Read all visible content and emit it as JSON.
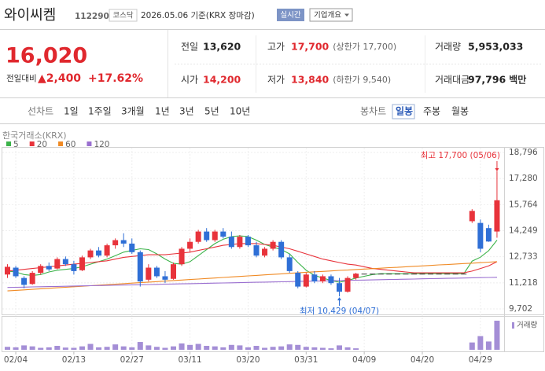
{
  "header": {
    "name": "와이씨켐",
    "code": "112290",
    "market": "코스닥",
    "date": "2026.05.06 기준(KRX 장마감)",
    "realtime": "실시간",
    "company_info": "기업개요"
  },
  "quote": {
    "price": "16,020",
    "change_label": "전일대비",
    "change": "▲2,400",
    "change_pct": "+17.62%",
    "color": "#e0282e"
  },
  "stats": [
    {
      "label": "전일",
      "value": "13,620",
      "color": "#222222"
    },
    {
      "label": "고가",
      "value": "17,700",
      "note": "(상한가 17,700)",
      "color": "#e0282e"
    },
    {
      "label": "거래량",
      "value": "5,953,033",
      "color": "#222222"
    },
    {
      "label": "시가",
      "value": "14,200",
      "color": "#e0282e"
    },
    {
      "label": "저가",
      "value": "13,840",
      "note": "(하한가 9,540)",
      "color": "#e0282e"
    },
    {
      "label": "거래대금",
      "value": "97,796",
      "unit": "백만",
      "color": "#222222"
    }
  ],
  "tabs": {
    "line_label": "선차트",
    "line": [
      "1일",
      "1주일",
      "3개월",
      "1년",
      "3년",
      "5년",
      "10년"
    ],
    "candle_label": "봉차트",
    "candle": [
      "일봉",
      "주봉",
      "월봉"
    ],
    "selected": "일봉"
  },
  "chart_data": {
    "type": "candlestick",
    "source": "한국거래소(KRX)",
    "categories": [
      null,
      "02/04",
      null,
      null,
      null,
      null,
      null,
      null,
      "02/13",
      null,
      null,
      null,
      null,
      null,
      null,
      "02/27",
      null,
      null,
      null,
      null,
      null,
      null,
      "03/11",
      null,
      null,
      null,
      null,
      null,
      null,
      "03/20",
      null,
      null,
      null,
      null,
      null,
      null,
      "03/31",
      null,
      null,
      null,
      null,
      null,
      null,
      "04/09",
      null,
      null,
      null,
      null,
      null,
      null,
      "04/20",
      null,
      null,
      null,
      null,
      null,
      null,
      "04/29",
      null,
      null
    ],
    "open": [
      11700,
      12100,
      11500,
      11150,
      11800,
      12200,
      12050,
      12600,
      12300,
      11950,
      12700,
      13100,
      12800,
      13400,
      13700,
      13500,
      13000,
      11400,
      12100,
      11600,
      11450,
      12300,
      13200,
      13600,
      14200,
      13700,
      14200,
      13900,
      13300,
      13900,
      13400,
      12800,
      13200,
      13600,
      12700,
      11800,
      11000,
      11700,
      11300,
      11600,
      11200,
      10700,
      11500,
      11750,
      11750,
      11750,
      11750,
      11750,
      11750,
      11750,
      11750,
      11750,
      11750,
      11750,
      11750,
      11750,
      14800,
      14700,
      14400,
      14200
    ],
    "high": [
      12300,
      12200,
      11600,
      11900,
      12300,
      12400,
      12700,
      12750,
      12500,
      12800,
      13200,
      13300,
      13500,
      13800,
      14100,
      13800,
      13100,
      12300,
      12200,
      11900,
      12400,
      13300,
      13800,
      14300,
      14400,
      14300,
      14400,
      14200,
      14000,
      14000,
      13600,
      13300,
      13700,
      13700,
      12900,
      11900,
      11800,
      11900,
      11700,
      11700,
      11500,
      11600,
      11800,
      11750,
      11750,
      11750,
      11750,
      11750,
      11750,
      11750,
      11750,
      11750,
      11750,
      11750,
      11750,
      11750,
      15500,
      14900,
      14600,
      17700
    ],
    "low": [
      11500,
      11500,
      10900,
      11100,
      11700,
      11900,
      12000,
      12200,
      11700,
      11900,
      12600,
      12700,
      12700,
      13200,
      13300,
      12900,
      11000,
      11300,
      11500,
      11200,
      11400,
      12200,
      13000,
      13500,
      13600,
      13600,
      13800,
      13200,
      13200,
      13300,
      12700,
      12700,
      13100,
      12600,
      11800,
      10900,
      10950,
      11200,
      11200,
      11100,
      10429,
      10650,
      11400,
      11750,
      11750,
      11750,
      11750,
      11750,
      11750,
      11750,
      11750,
      11750,
      11750,
      11750,
      11750,
      11750,
      14700,
      13000,
      13600,
      13840
    ],
    "close": [
      12150,
      11600,
      11100,
      11800,
      12200,
      12000,
      12600,
      12300,
      11900,
      12700,
      13100,
      12800,
      13400,
      13700,
      13500,
      13000,
      11300,
      12100,
      11600,
      11400,
      12300,
      13200,
      13600,
      14200,
      13700,
      14200,
      13900,
      13300,
      13900,
      13400,
      12800,
      13200,
      13600,
      12700,
      11900,
      11000,
      11700,
      11300,
      11600,
      11200,
      10700,
      11500,
      11750,
      11750,
      11750,
      11750,
      11750,
      11750,
      11750,
      11750,
      11750,
      11750,
      11750,
      11750,
      11750,
      11750,
      15400,
      13200,
      13620,
      16020
    ],
    "volume": [
      600000,
      500000,
      900000,
      700000,
      400000,
      500000,
      800000,
      450000,
      400000,
      700000,
      1200000,
      500000,
      600000,
      1100000,
      700000,
      500000,
      1600000,
      900000,
      600000,
      400000,
      700000,
      1300000,
      1000000,
      1200000,
      800000,
      700000,
      500000,
      1000000,
      900000,
      500000,
      800000,
      400000,
      600000,
      700000,
      1100000,
      1000000,
      600000,
      500000,
      400000,
      300000,
      900000,
      500000,
      300000,
      0,
      0,
      0,
      0,
      0,
      0,
      0,
      0,
      0,
      0,
      0,
      0,
      0,
      1500000,
      2800000,
      1700000,
      5953033
    ],
    "up_color": "#e8333b",
    "down_color": "#2f6fd6",
    "flat_color": "#333333",
    "volume_color": "#a48ed6",
    "volume_label": "거래량",
    "series": [
      {
        "name": "5",
        "color": "#3cb34a",
        "values": [
          11900,
          11850,
          11700,
          11650,
          11700,
          11850,
          11950,
          12000,
          12050,
          12150,
          12300,
          12450,
          12600,
          12800,
          13000,
          13100,
          13200,
          13150,
          12900,
          12600,
          12350,
          12300,
          12450,
          12800,
          13150,
          13500,
          13750,
          13900,
          13950,
          13900,
          13700,
          13450,
          13300,
          13150,
          12900,
          12400,
          11950,
          11650,
          11500,
          11350,
          11250,
          11350,
          11500,
          11600,
          11700,
          11750,
          11750,
          11750,
          11750,
          11750,
          11750,
          11750,
          11750,
          11750,
          11750,
          11750,
          12480,
          12710,
          13090,
          13700
        ]
      },
      {
        "name": "20",
        "color": "#e8333b",
        "values": [
          11900,
          11950,
          12000,
          12050,
          12100,
          12150,
          12200,
          12250,
          12300,
          12350,
          12400,
          12450,
          12500,
          12600,
          12700,
          12750,
          12800,
          12850,
          12850,
          12850,
          12900,
          12950,
          13000,
          13100,
          13200,
          13300,
          13400,
          13450,
          13500,
          13500,
          13500,
          13450,
          13400,
          13300,
          13200,
          13050,
          12900,
          12750,
          12600,
          12500,
          12400,
          12300,
          12250,
          12150,
          12050,
          12000,
          11950,
          11900,
          11850,
          11800,
          11800,
          11800,
          11800,
          11800,
          11800,
          11800,
          11900,
          12050,
          12200,
          12450
        ]
      },
      {
        "name": "60",
        "color": "#f08a24",
        "values": [
          10750,
          10780,
          10810,
          10840,
          10870,
          10900,
          10930,
          10960,
          10990,
          11020,
          11050,
          11080,
          11110,
          11140,
          11170,
          11200,
          11230,
          11260,
          11290,
          11320,
          11350,
          11380,
          11410,
          11440,
          11470,
          11500,
          11530,
          11560,
          11590,
          11620,
          11650,
          11680,
          11710,
          11740,
          11770,
          11800,
          11830,
          11860,
          11880,
          11910,
          11940,
          11960,
          11990,
          12020,
          12040,
          12070,
          12100,
          12120,
          12150,
          12180,
          12200,
          12230,
          12260,
          12280,
          12310,
          12340,
          12360,
          12390,
          12420,
          12450
        ]
      },
      {
        "name": "120",
        "color": "#9a6fd0",
        "values": [
          10950,
          10960,
          10970,
          10980,
          10990,
          11000,
          11010,
          11020,
          11030,
          11040,
          11050,
          11060,
          11070,
          11080,
          11090,
          11100,
          11110,
          11120,
          11130,
          11140,
          11150,
          11160,
          11170,
          11180,
          11190,
          11200,
          11210,
          11220,
          11230,
          11240,
          11250,
          11260,
          11270,
          11280,
          11290,
          11300,
          11310,
          11320,
          11330,
          11340,
          11350,
          11360,
          11370,
          11380,
          11390,
          11400,
          11410,
          11420,
          11430,
          11440,
          11450,
          11460,
          11470,
          11480,
          11490,
          11500,
          11510,
          11520,
          11530,
          11540
        ]
      }
    ],
    "annotations": {
      "high": "최고 17,700 (05/06)",
      "high_color": "#e8333b",
      "low": "최저 10,429 (04/07)",
      "low_color": "#2f6fd6"
    },
    "ylim": [
      9702,
      18796
    ],
    "yticks": [
      {
        "value": 9702,
        "label": "9,702"
      },
      {
        "value": 11218,
        "label": "11,218"
      },
      {
        "value": 12733,
        "label": "12,733"
      },
      {
        "value": 14249,
        "label": "14,249"
      },
      {
        "value": 15764,
        "label": "15,764"
      },
      {
        "value": 17280,
        "label": "17,280"
      },
      {
        "value": 18796,
        "label": "18,796"
      }
    ],
    "grid": true
  }
}
